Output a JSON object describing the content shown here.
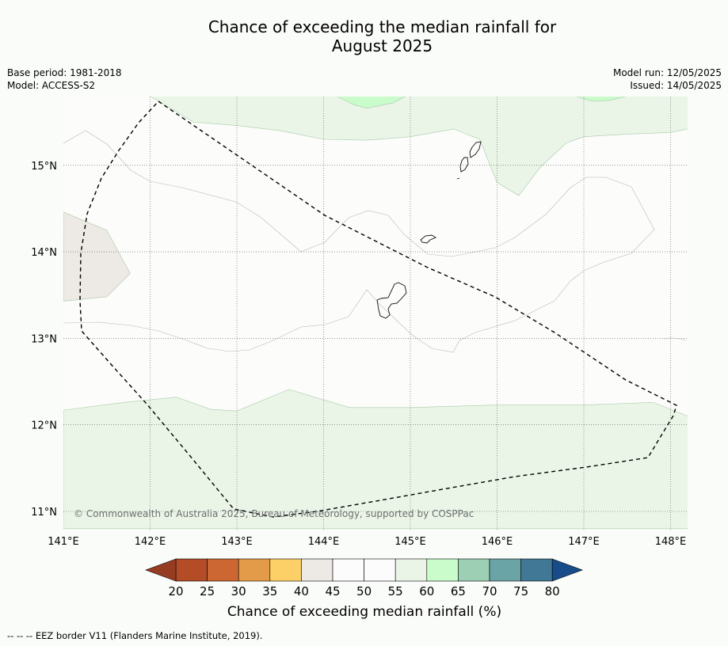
{
  "title_line1": "Chance of exceeding the median rainfall for",
  "title_line2": "August 2025",
  "base_period": "Base period: 1981-2018",
  "model": "Model: ACCESS-S2",
  "model_run": "Model run: 12/05/2025",
  "issued": "Issued: 14/05/2025",
  "copyright": "© Commonwealth of Australia 2025, Bureau of Meteorology, supported by COSPPac",
  "footer": "--  --  -- EEZ border V11 (Flanders Marine Institute, 2019).",
  "colorbar_label": "Chance of exceeding median rainfall (%)",
  "colors": {
    "below": "#963c22",
    "c20_25": "#b44c28",
    "c25_30": "#cc6633",
    "c30_35": "#e39a49",
    "c35_40": "#fccf67",
    "c40_45": "#ede9e4",
    "c45_50": "#fcfcfc",
    "c50_55": "#fcfcfc",
    "c55_60": "#eaf5e8",
    "c60_65": "#c9fcca",
    "c65_70": "#9ccfb4",
    "c70_75": "#6ba4a6",
    "c75_80": "#407896",
    "above": "#164c8a"
  },
  "chart_data": {
    "type": "heatmap",
    "title": "Chance of exceeding the median rainfall for August 2025",
    "xlabel": "",
    "ylabel": "",
    "xlim": [
      141.0,
      148.2
    ],
    "ylim": [
      10.8,
      15.8
    ],
    "x_ticks": [
      141,
      142,
      143,
      144,
      145,
      146,
      147,
      148
    ],
    "x_tick_labels": [
      "141°E",
      "142°E",
      "143°E",
      "144°E",
      "145°E",
      "146°E",
      "147°E",
      "148°E"
    ],
    "y_ticks": [
      11,
      12,
      13,
      14,
      15
    ],
    "y_tick_labels": [
      "11°N",
      "12°N",
      "13°N",
      "14°N",
      "15°N"
    ],
    "grid": true,
    "colorbar": {
      "label": "Chance of exceeding median rainfall (%)",
      "boundaries": [
        20,
        25,
        30,
        35,
        40,
        45,
        50,
        55,
        60,
        65,
        70,
        75,
        80
      ],
      "tick_labels": [
        "20",
        "25",
        "30",
        "35",
        "40",
        "45",
        "50",
        "55",
        "60",
        "65",
        "70",
        "75",
        "80"
      ]
    },
    "regions": [
      {
        "range": "40-45",
        "polygon": [
          [
            141.0,
            14.46
          ],
          [
            141.5,
            14.25
          ],
          [
            141.77,
            13.75
          ],
          [
            141.5,
            13.48
          ],
          [
            141.0,
            13.43
          ]
        ]
      },
      {
        "range": "55-60",
        "polygon": [
          [
            141.0,
            12.17
          ],
          [
            141.7,
            12.26
          ],
          [
            142.3,
            12.32
          ],
          [
            142.7,
            12.18
          ],
          [
            143.0,
            12.16
          ],
          [
            143.6,
            12.41
          ],
          [
            144.3,
            12.2
          ],
          [
            145.0,
            12.2
          ],
          [
            146.0,
            12.23
          ],
          [
            147.0,
            12.23
          ],
          [
            147.8,
            12.26
          ],
          [
            148.2,
            12.1
          ],
          [
            148.2,
            10.8
          ],
          [
            141.0,
            10.8
          ]
        ]
      },
      {
        "range": "55-60",
        "polygon": [
          [
            142.0,
            15.8
          ],
          [
            142.5,
            15.5
          ],
          [
            143.0,
            15.46
          ],
          [
            143.5,
            15.4
          ],
          [
            144.0,
            15.3
          ],
          [
            144.5,
            15.29
          ],
          [
            145.0,
            15.33
          ],
          [
            145.5,
            15.42
          ],
          [
            145.8,
            15.3
          ],
          [
            146.0,
            14.8
          ],
          [
            146.25,
            14.65
          ],
          [
            146.5,
            14.98
          ],
          [
            146.8,
            15.26
          ],
          [
            147.0,
            15.33
          ],
          [
            147.5,
            15.36
          ],
          [
            148.0,
            15.38
          ],
          [
            148.2,
            15.42
          ],
          [
            148.2,
            15.8
          ]
        ]
      },
      {
        "range": "60-65",
        "polygon": [
          [
            144.15,
            15.8
          ],
          [
            144.35,
            15.7
          ],
          [
            144.5,
            15.66
          ],
          [
            144.8,
            15.72
          ],
          [
            144.95,
            15.8
          ]
        ]
      },
      {
        "range": "60-65",
        "polygon": [
          [
            146.9,
            15.8
          ],
          [
            147.1,
            15.74
          ],
          [
            147.3,
            15.75
          ],
          [
            147.5,
            15.8
          ]
        ]
      }
    ]
  }
}
